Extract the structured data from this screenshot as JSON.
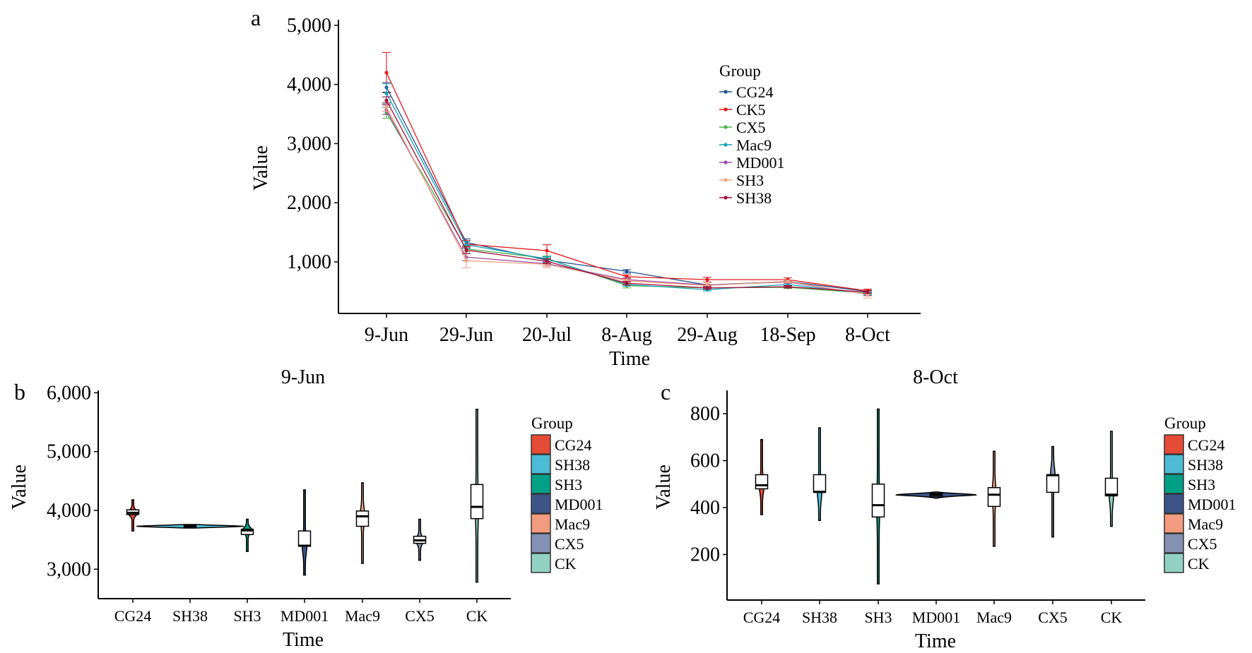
{
  "chart_data": [
    {
      "panel_label": "a",
      "type": "line",
      "title": "",
      "xlabel": "Time",
      "ylabel": "Value",
      "categories": [
        "9-Jun",
        "29-Jun",
        "20-Jul",
        "8-Aug",
        "29-Aug",
        "18-Sep",
        "8-Oct"
      ],
      "yticks": [
        1000,
        2000,
        3000,
        4000,
        5000
      ],
      "ytick_labels": [
        "1,000",
        "2,000",
        "3,000",
        "4,000",
        "5,000"
      ],
      "ylim": [
        130,
        5000
      ],
      "legend": {
        "title": "Group",
        "placement": "top-right"
      },
      "series": [
        {
          "name": "CG24",
          "color": "#1f4e8c",
          "values": [
            3950,
            1330,
            1030,
            840,
            610,
            670,
            500
          ],
          "errors": [
            80,
            60,
            40,
            30,
            20,
            20,
            20
          ]
        },
        {
          "name": "CK5",
          "color": "#e41a1c",
          "values": [
            4200,
            1300,
            1190,
            750,
            700,
            700,
            510
          ],
          "errors": [
            340,
            60,
            100,
            30,
            40,
            30,
            30
          ]
        },
        {
          "name": "CX5",
          "color": "#4daf4a",
          "values": [
            3520,
            1220,
            1060,
            600,
            560,
            570,
            470
          ],
          "errors": [
            90,
            50,
            40,
            40,
            20,
            20,
            20
          ]
        },
        {
          "name": "Mac9",
          "color": "#17a2b8",
          "values": [
            3850,
            1290,
            1050,
            620,
            530,
            620,
            460
          ],
          "errors": [
            160,
            60,
            40,
            30,
            20,
            20,
            20
          ]
        },
        {
          "name": "MD001",
          "color": "#984ea3",
          "values": [
            3570,
            1080,
            970,
            700,
            610,
            660,
            450
          ],
          "errors": [
            80,
            60,
            40,
            30,
            20,
            20,
            20
          ]
        },
        {
          "name": "SH3",
          "color": "#f4a582",
          "values": [
            3620,
            1020,
            960,
            680,
            600,
            670,
            450
          ],
          "errors": [
            80,
            120,
            60,
            30,
            30,
            20,
            60
          ]
        },
        {
          "name": "SH38",
          "color": "#a50f3a",
          "values": [
            3730,
            1200,
            1010,
            640,
            560,
            580,
            490
          ],
          "errors": [
            60,
            60,
            40,
            30,
            20,
            20,
            20
          ]
        }
      ]
    },
    {
      "panel_label": "b",
      "type": "violin",
      "title": "9-Jun",
      "xlabel": "Time",
      "ylabel": "Value",
      "yticks": [
        3000,
        4000,
        5000,
        6000
      ],
      "ytick_labels": [
        "3,000",
        "4,000",
        "5,000",
        "6,000"
      ],
      "ylim": [
        2500,
        6000
      ],
      "legend": {
        "title": "Group",
        "placement": "right"
      },
      "groups": [
        {
          "name": "CG24",
          "color": "#e64b35",
          "min": 3650,
          "q1": 3930,
          "median": 3960,
          "q3": 4010,
          "max": 4180
        },
        {
          "name": "SH38",
          "color": "#4dbbd5",
          "min": 3700,
          "q1": 3715,
          "median": 3730,
          "q3": 3745,
          "max": 3760
        },
        {
          "name": "SH3",
          "color": "#00a087",
          "min": 3300,
          "q1": 3590,
          "median": 3660,
          "q3": 3680,
          "max": 3850
        },
        {
          "name": "MD001",
          "color": "#3c5488",
          "min": 2900,
          "q1": 3390,
          "median": 3400,
          "q3": 3650,
          "max": 4350
        },
        {
          "name": "Mac9",
          "color": "#f39b7f",
          "min": 3100,
          "q1": 3730,
          "median": 3900,
          "q3": 3990,
          "max": 4470
        },
        {
          "name": "CX5",
          "color": "#8491b4",
          "min": 3150,
          "q1": 3440,
          "median": 3490,
          "q3": 3560,
          "max": 3850
        },
        {
          "name": "CK",
          "color": "#91d1c2",
          "min": 2780,
          "q1": 3860,
          "median": 4060,
          "q3": 4440,
          "max": 5720
        }
      ]
    },
    {
      "panel_label": "c",
      "type": "violin",
      "title": "8-Oct",
      "xlabel": "Time",
      "ylabel": "Value",
      "yticks": [
        200,
        400,
        600,
        800
      ],
      "ytick_labels": [
        "200",
        "400",
        "600",
        "800"
      ],
      "ylim": [
        10,
        890
      ],
      "legend": {
        "title": "Group",
        "placement": "right"
      },
      "groups": [
        {
          "name": "CG24",
          "color": "#e64b35",
          "min": 370,
          "q1": 480,
          "median": 495,
          "q3": 540,
          "max": 690
        },
        {
          "name": "SH38",
          "color": "#4dbbd5",
          "min": 345,
          "q1": 465,
          "median": 467,
          "q3": 540,
          "max": 740
        },
        {
          "name": "SH3",
          "color": "#00a087",
          "min": 75,
          "q1": 360,
          "median": 410,
          "q3": 500,
          "max": 820
        },
        {
          "name": "MD001",
          "color": "#3c5488",
          "min": 440,
          "q1": 448,
          "median": 455,
          "q3": 460,
          "max": 467
        },
        {
          "name": "Mac9",
          "color": "#f39b7f",
          "min": 235,
          "q1": 405,
          "median": 455,
          "q3": 485,
          "max": 640
        },
        {
          "name": "CX5",
          "color": "#8491b4",
          "min": 275,
          "q1": 465,
          "median": 538,
          "q3": 540,
          "max": 660
        },
        {
          "name": "CK",
          "color": "#91d1c2",
          "min": 320,
          "q1": 450,
          "median": 455,
          "q3": 525,
          "max": 725
        }
      ]
    }
  ]
}
